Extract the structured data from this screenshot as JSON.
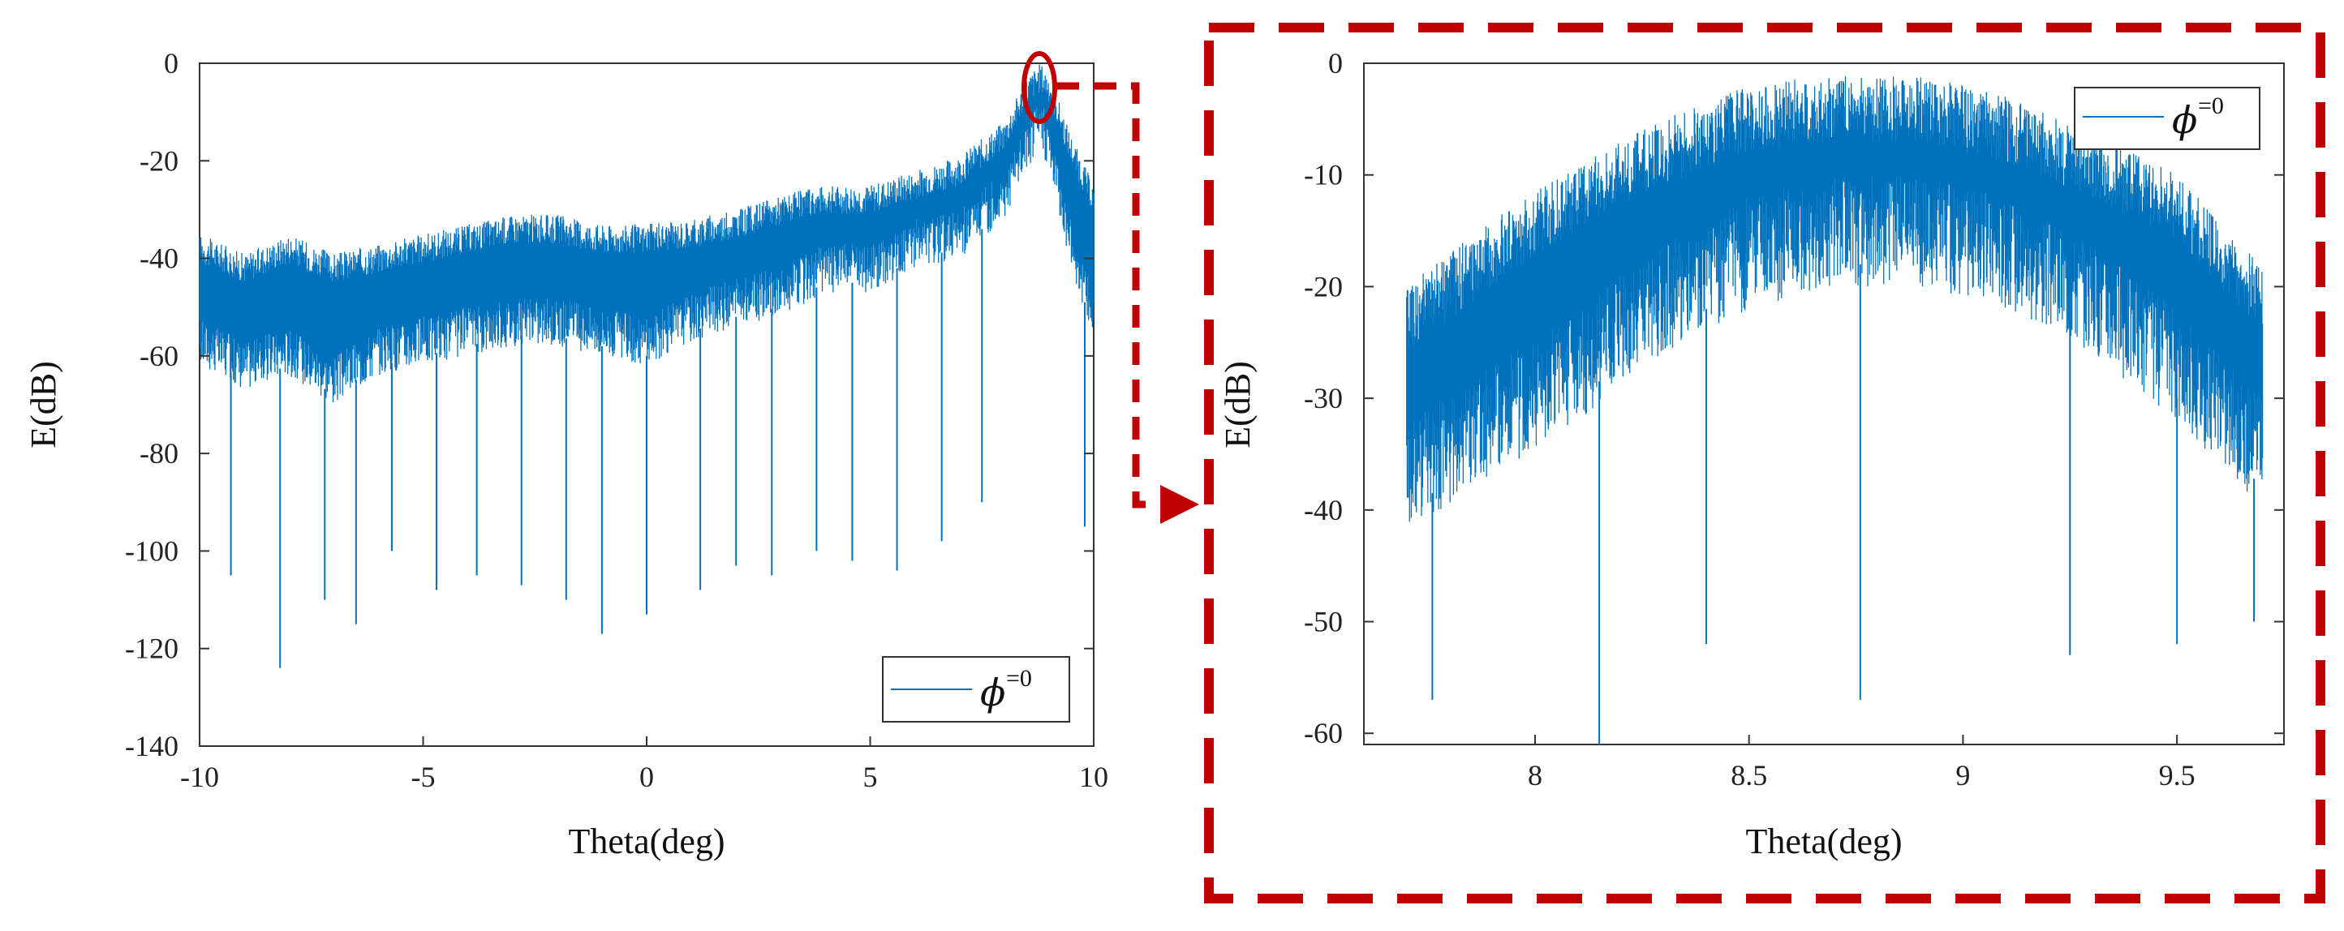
{
  "colors": {
    "series": "#0072BD",
    "highlight": "#C00000",
    "axis": "#333333"
  },
  "chart_data": [
    {
      "type": "line",
      "xlabel": "Theta(deg)",
      "ylabel": "E(dB)",
      "xlim": [
        -10,
        10
      ],
      "ylim": [
        -140,
        0
      ],
      "xticks": [
        "-10",
        "-5",
        "0",
        "5",
        "10"
      ],
      "yticks": [
        "0",
        "-20",
        "-40",
        "-60",
        "-80",
        "-100",
        "-120",
        "-140"
      ],
      "legend": {
        "position": "bottom-right",
        "symbol": "ϕ",
        "suffix": "=0"
      },
      "grid": false,
      "series": [
        {
          "name": "ϕ=0",
          "description": "dense oscillating pattern; envelope sampled",
          "x": [
            -10,
            -9,
            -8,
            -7,
            -6,
            -5,
            -4,
            -3,
            -2,
            -1,
            0,
            1,
            2,
            3,
            4,
            5,
            6,
            7,
            8,
            8.5,
            8.8,
            9,
            9.5,
            10
          ],
          "upper": [
            -38,
            -42,
            -38,
            -42,
            -40,
            -38,
            -36,
            -34,
            -34,
            -36,
            -36,
            -35,
            -33,
            -30,
            -28,
            -28,
            -25,
            -22,
            -15,
            -6,
            -3,
            -5,
            -18,
            -28
          ],
          "lower": [
            -60,
            -65,
            -62,
            -68,
            -62,
            -60,
            -58,
            -56,
            -56,
            -58,
            -60,
            -55,
            -52,
            -50,
            -45,
            -45,
            -40,
            -38,
            -30,
            -20,
            -15,
            -20,
            -40,
            -55
          ],
          "nulls": [
            [
              -9.3,
              -105
            ],
            [
              -8.2,
              -124
            ],
            [
              -7.2,
              -110
            ],
            [
              -6.5,
              -115
            ],
            [
              -5.7,
              -100
            ],
            [
              -4.7,
              -108
            ],
            [
              -3.8,
              -105
            ],
            [
              -2.8,
              -107
            ],
            [
              -1.8,
              -110
            ],
            [
              -1.0,
              -117
            ],
            [
              0.0,
              -113
            ],
            [
              1.2,
              -108
            ],
            [
              2.0,
              -103
            ],
            [
              2.8,
              -105
            ],
            [
              3.8,
              -100
            ],
            [
              4.6,
              -102
            ],
            [
              5.6,
              -104
            ],
            [
              6.6,
              -98
            ],
            [
              7.5,
              -90
            ],
            [
              9.8,
              -95
            ]
          ]
        }
      ]
    },
    {
      "type": "line",
      "xlabel": "Theta(deg)",
      "ylabel": "E(dB)",
      "xlim": [
        7.6,
        9.75
      ],
      "ylim": [
        -61,
        0
      ],
      "xticks": [
        "8",
        "8.5",
        "9",
        "9.5"
      ],
      "yticks": [
        "0",
        "-10",
        "-20",
        "-30",
        "-40",
        "-50",
        "-60"
      ],
      "legend": {
        "position": "top-right",
        "symbol": "ϕ",
        "suffix": "=0"
      },
      "grid": false,
      "series": [
        {
          "name": "ϕ=0",
          "description": "zoom of main lobe; dense band",
          "x": [
            7.7,
            7.9,
            8.1,
            8.3,
            8.5,
            8.7,
            8.9,
            9.1,
            9.3,
            9.5,
            9.7
          ],
          "upper": [
            -23,
            -17,
            -12,
            -8,
            -5,
            -4,
            -4,
            -6,
            -9,
            -13,
            -21
          ],
          "lower": [
            -40,
            -35,
            -30,
            -24,
            -20,
            -18,
            -18,
            -20,
            -24,
            -30,
            -38
          ],
          "nulls": [
            [
              7.76,
              -57
            ],
            [
              8.15,
              -61
            ],
            [
              8.4,
              -52
            ],
            [
              8.76,
              -57
            ],
            [
              9.25,
              -53
            ],
            [
              9.5,
              -52
            ],
            [
              9.68,
              -50
            ]
          ]
        }
      ]
    }
  ]
}
